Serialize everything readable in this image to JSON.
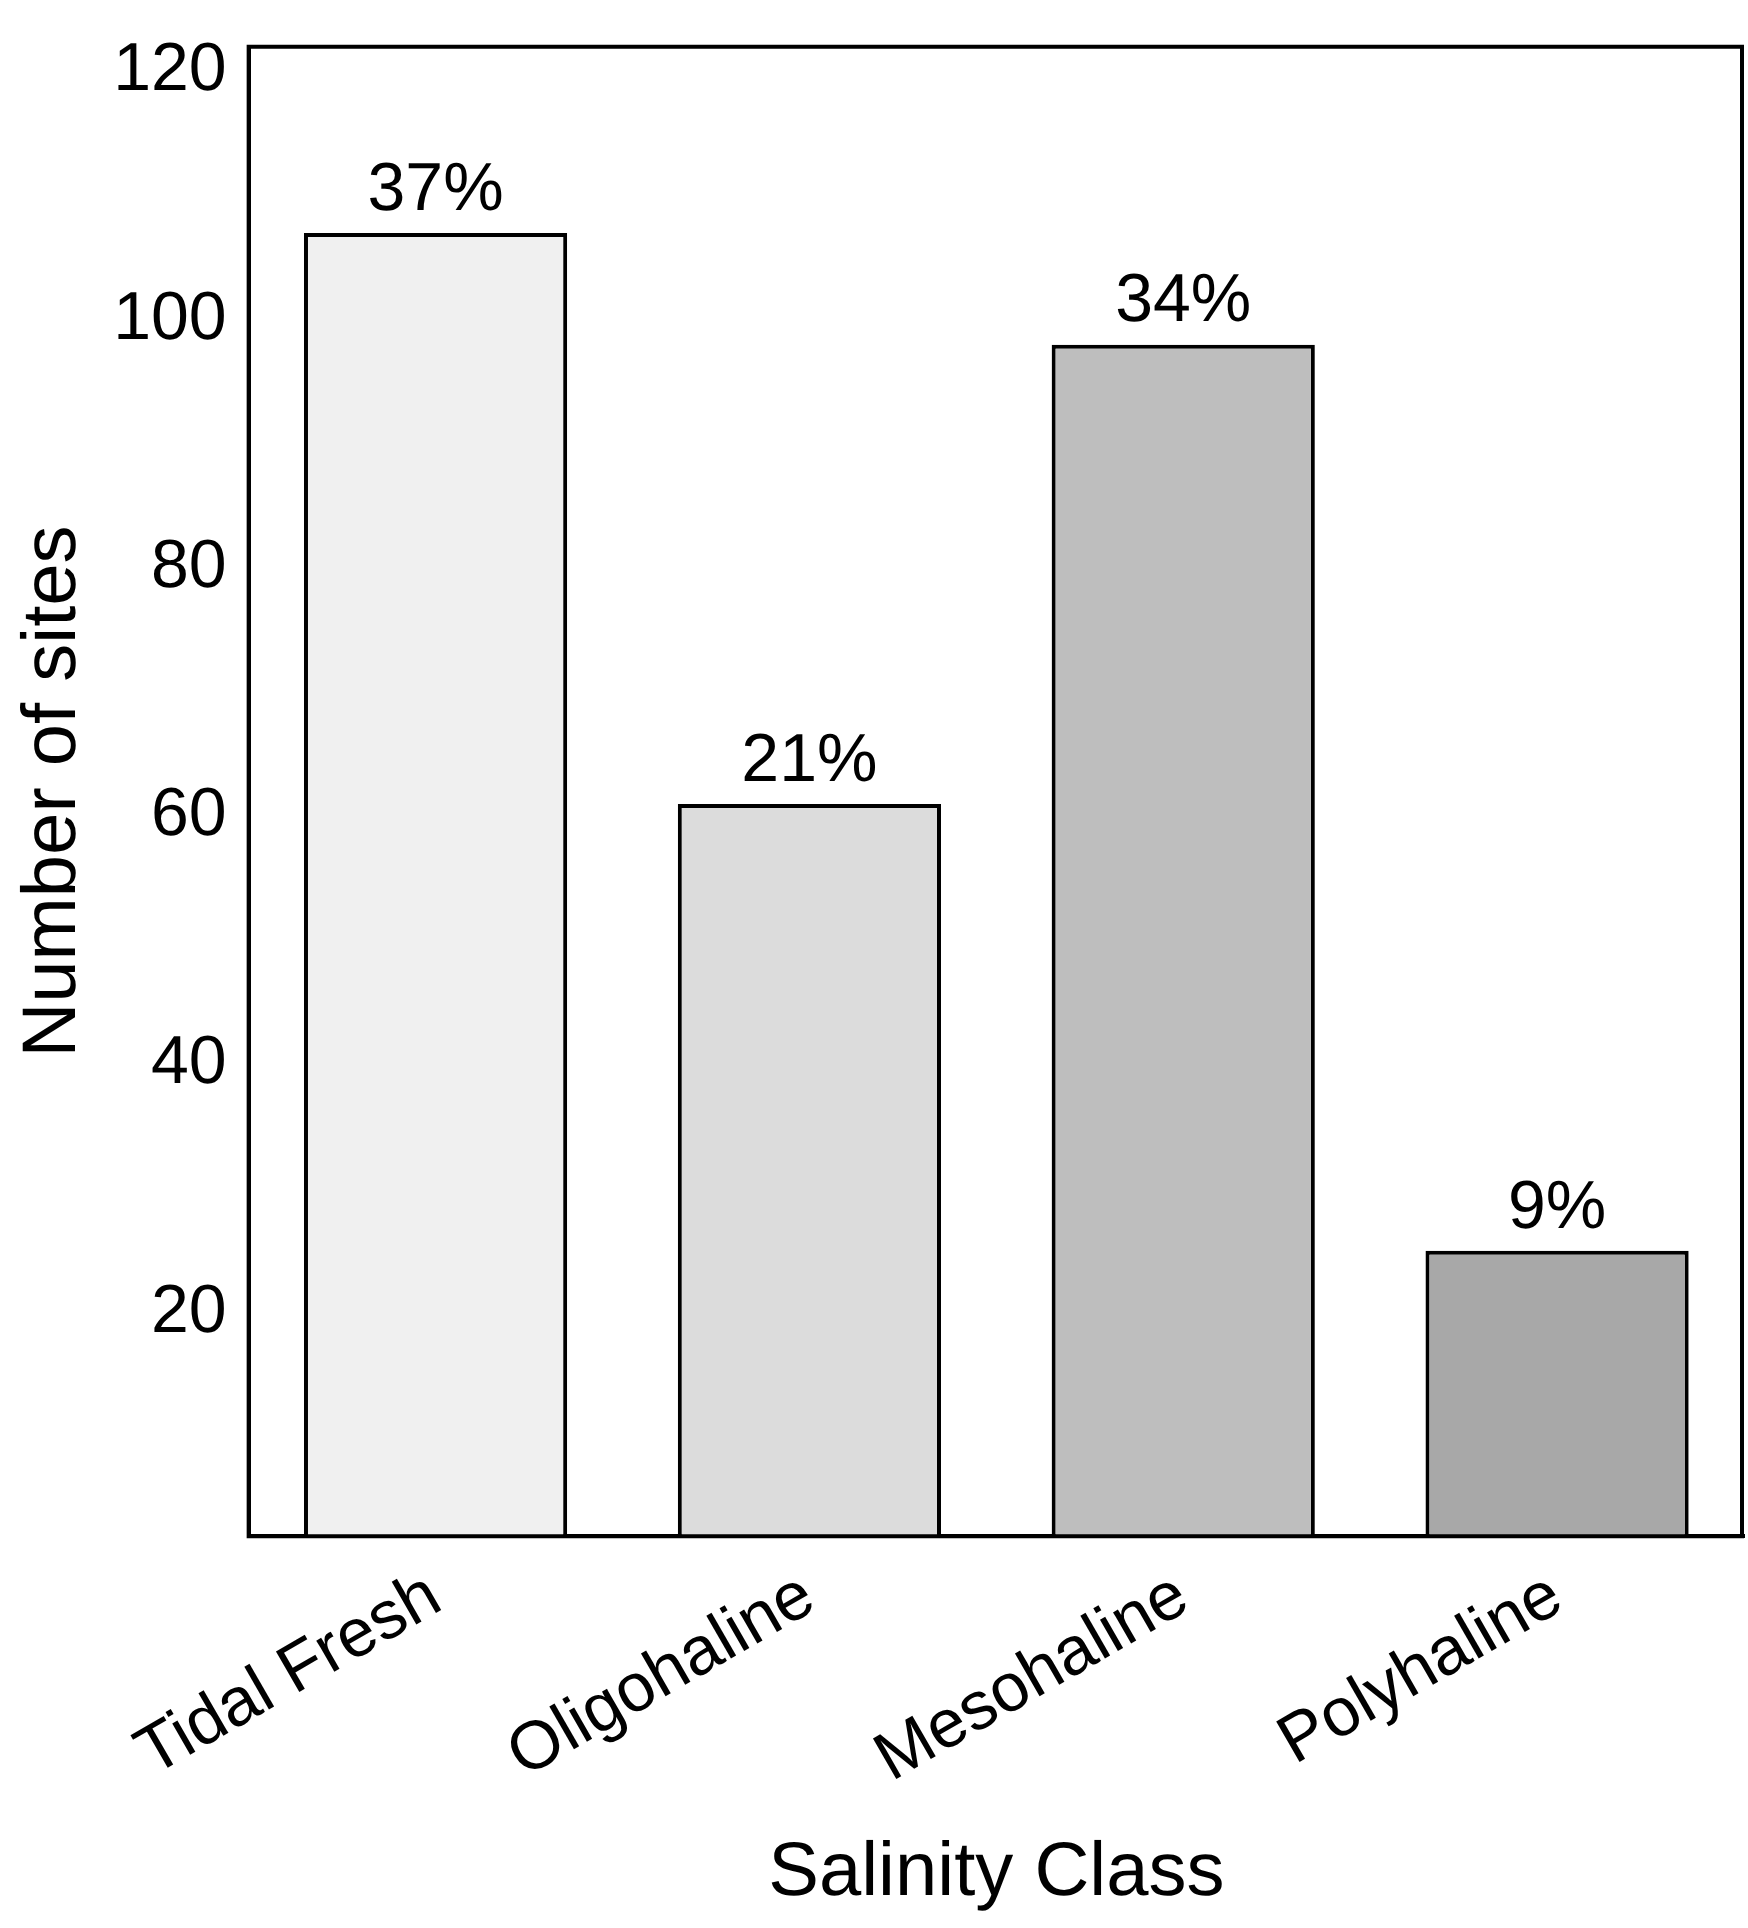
{
  "chart_data": {
    "type": "bar",
    "xlabel": "Salinity Class",
    "ylabel": "Number of sites",
    "categories": [
      "Tidal Fresh",
      "Oligohaline",
      "Mesohaline",
      "Polyhaline"
    ],
    "values": [
      107,
      61,
      98,
      25
    ],
    "colors": [
      "#f0f0f0",
      "#dcdcdc",
      "#bebebe",
      "#a8a8a8"
    ],
    "annotations": [
      {
        "text": "37%",
        "x": "Tidal Fresh",
        "y": 107
      },
      {
        "text": "21%",
        "x": "Oligohaline",
        "y": 61
      },
      {
        "text": "34%",
        "x": "Mesohaline",
        "y": 98
      },
      {
        "text": "9%",
        "x": "Polyhaline",
        "y": 25
      }
    ],
    "ylim": [
      2,
      122
    ],
    "yticks": [
      20,
      40,
      60,
      80,
      100,
      120
    ],
    "grid": false,
    "legend": false
  }
}
